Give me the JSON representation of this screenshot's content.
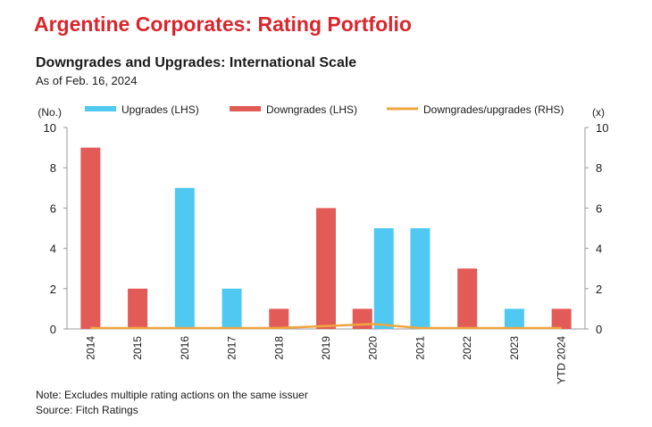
{
  "header": {
    "title": "Argentine Corporates: Rating Portfolio",
    "subtitle": "Downgrades and Upgrades: International Scale",
    "as_of": "As of Feb. 16, 2024"
  },
  "footer": {
    "note": "Note: Excludes multiple rating actions on the same issuer",
    "source": "Source: Fitch Ratings"
  },
  "colors": {
    "upgrades": "#4fc9f2",
    "downgrades": "#e35b57",
    "ratio": "#f0a640",
    "axis": "#999999",
    "title": "#d9262c"
  },
  "chart_data": {
    "type": "bar",
    "categories": [
      "2014",
      "2015",
      "2016",
      "2017",
      "2018",
      "2019",
      "2020",
      "2021",
      "2022",
      "2023",
      "YTD 2024"
    ],
    "series": [
      {
        "name": "Upgrades (LHS)",
        "axis": "left",
        "type": "bar",
        "values": [
          0,
          0,
          7,
          2,
          0,
          0,
          5,
          5,
          0,
          1,
          0
        ]
      },
      {
        "name": "Downgrades (LHS)",
        "axis": "left",
        "type": "bar",
        "values": [
          9,
          2,
          0,
          0,
          1,
          6,
          1,
          0,
          3,
          0,
          1
        ]
      },
      {
        "name": "Downgrades/upgrades (RHS)",
        "axis": "right",
        "type": "line",
        "values": [
          0,
          0,
          0,
          0,
          0,
          0.1,
          0.2,
          0,
          0,
          0,
          0
        ]
      }
    ],
    "ylabel_left": "(No.)",
    "ylabel_right": "(x)",
    "ylim_left": [
      0,
      10
    ],
    "ylim_right": [
      0,
      10
    ],
    "yticks": [
      0,
      2,
      4,
      6,
      8,
      10
    ],
    "legend_position": "top",
    "grid": false
  }
}
